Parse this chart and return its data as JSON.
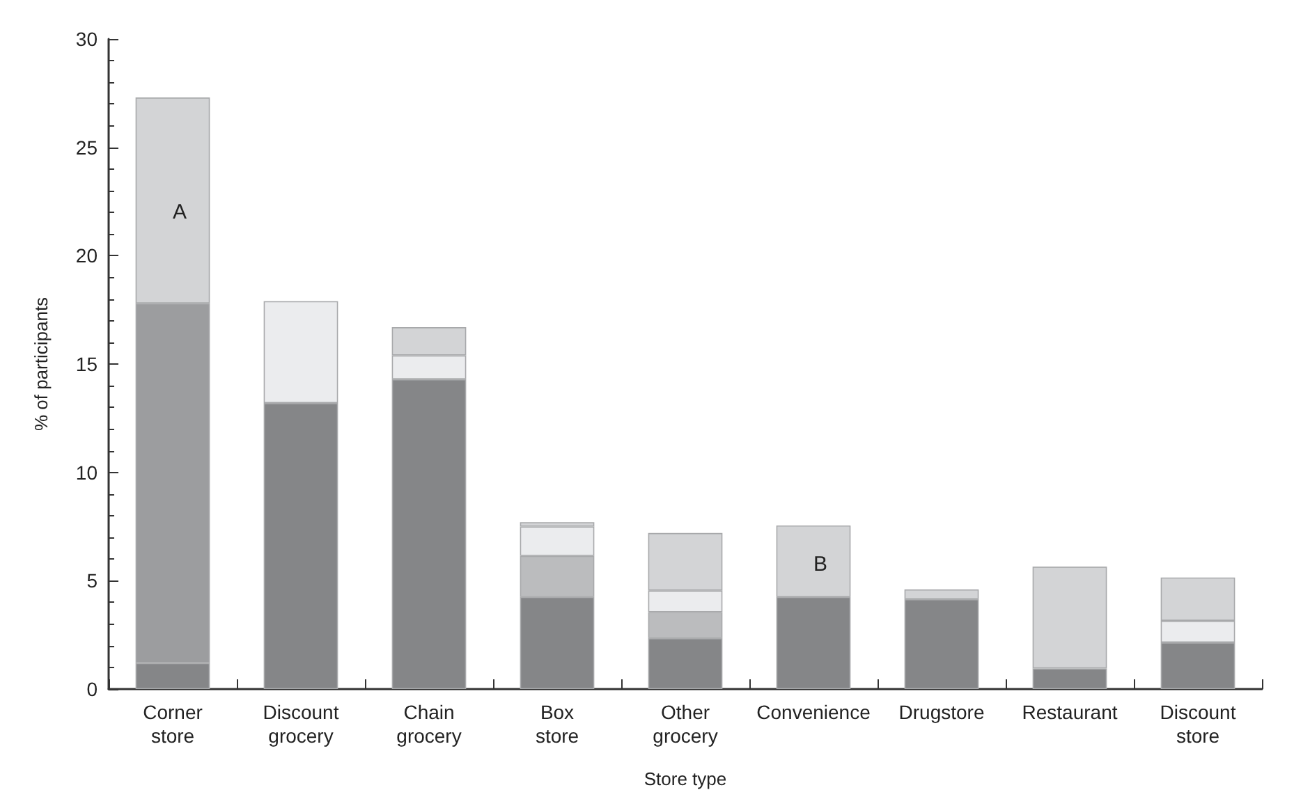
{
  "chart_data": {
    "type": "bar",
    "stacked": true,
    "xlabel": "Store type",
    "ylabel": "% of participants",
    "categories": [
      "Corner store",
      "Discount grocery",
      "Chain grocery",
      "Box store",
      "Other grocery",
      "Convenience",
      "Drugstore",
      "Restaurant",
      "Discount store"
    ],
    "series": [
      {
        "color": "#858688",
        "values": [
          1.2,
          13.2,
          14.3,
          4.25,
          2.35,
          4.25,
          4.15,
          0.95,
          2.15
        ]
      },
      {
        "color": "#bbbcbe",
        "values": [
          null,
          null,
          null,
          1.9,
          1.2,
          null,
          null,
          null,
          null
        ]
      },
      {
        "color": "#ebecee",
        "values": [
          null,
          4.7,
          1.1,
          1.35,
          1.0,
          null,
          null,
          null,
          1.0
        ]
      },
      {
        "color": "#9c9d9f",
        "values": [
          16.6,
          null,
          null,
          null,
          null,
          null,
          null,
          null,
          null
        ]
      },
      {
        "color": "#d3d4d6",
        "values": [
          9.5,
          null,
          1.3,
          0.2,
          2.65,
          3.3,
          0.45,
          4.7,
          2.0
        ]
      }
    ],
    "annotations": [
      "A",
      "B"
    ],
    "ylim": [
      0,
      30
    ],
    "yticks": [
      0,
      5,
      10,
      15,
      20,
      25,
      30
    ],
    "grid": false
  }
}
